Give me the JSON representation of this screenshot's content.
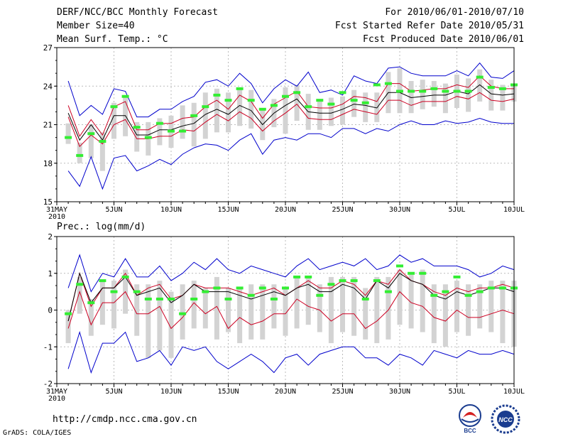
{
  "header": {
    "title": "DERF/NCC/BCC Monthly Forecast",
    "member_size": "Member Size=40",
    "variable": "Mean Surf. Temp.: °C",
    "period": "For 2010/06/01-2010/07/10",
    "refer_date": "Fcst Started Refer Date 2010/05/31",
    "produced_date": "Fcst Produced Date 2010/06/01"
  },
  "footer": {
    "url": "http://cmdp.ncc.cma.gov.cn",
    "credit": "GrADS: COLA/IGES",
    "logo_bcc": "BCC",
    "logo_ncc": "NCC"
  },
  "colors": {
    "ens_max_min": "#0000cc",
    "ens_spread": "#cc0022",
    "ens_mean": "#000000",
    "observed": "#33ee33",
    "box": "#d3d3d3"
  },
  "chart_data": [
    {
      "type": "line",
      "title": "Mean Surf. Temp.: °C",
      "ylim": [
        15,
        27
      ],
      "yticks": [
        "15",
        "18",
        "21",
        "24",
        "27"
      ],
      "ytick_values": [
        15,
        18,
        21,
        24,
        27
      ],
      "xlabels": [
        "31MAY",
        "5JUN",
        "10JUN",
        "15JUN",
        "20JUN",
        "25JUN",
        "30JUN",
        "5JUL",
        "10JUL"
      ],
      "xlabel_days": [
        0,
        5,
        10,
        15,
        20,
        25,
        30,
        35,
        40
      ],
      "year_label": "2010",
      "x": [
        1,
        2,
        3,
        4,
        5,
        6,
        7,
        8,
        9,
        10,
        11,
        12,
        13,
        14,
        15,
        16,
        17,
        18,
        19,
        20,
        21,
        22,
        23,
        24,
        25,
        26,
        27,
        28,
        29,
        30,
        31,
        32,
        33,
        34,
        35,
        36,
        37,
        38,
        39,
        40
      ],
      "series": [
        {
          "name": "max",
          "values": [
            24.4,
            21.7,
            22.5,
            21.8,
            23.8,
            23.6,
            21.6,
            21.6,
            22.2,
            22.2,
            22.8,
            23.2,
            24.3,
            24.5,
            24.0,
            25.0,
            24.2,
            22.7,
            23.8,
            24.5,
            24.0,
            25.1,
            23.5,
            23.7,
            23.3,
            24.8,
            24.4,
            24.2,
            25.4,
            25.5,
            25.0,
            24.8,
            24.8,
            24.8,
            25.2,
            24.8,
            25.8,
            24.7,
            24.6,
            25.2
          ]
        },
        {
          "name": "upper",
          "values": [
            22.5,
            20.1,
            21.4,
            20.2,
            22.4,
            22.8,
            20.6,
            20.6,
            21.1,
            21.1,
            21.5,
            21.6,
            22.4,
            22.9,
            22.2,
            23.3,
            22.8,
            21.5,
            22.6,
            23.1,
            23.6,
            22.4,
            22.3,
            22.3,
            22.6,
            23.2,
            23.1,
            22.8,
            24.2,
            24.2,
            23.6,
            23.7,
            23.8,
            23.8,
            24.1,
            23.9,
            24.8,
            24.0,
            23.8,
            23.8
          ]
        },
        {
          "name": "mean",
          "values": [
            21.9,
            19.8,
            21.0,
            19.8,
            21.7,
            21.7,
            20.2,
            20.2,
            20.6,
            20.6,
            20.9,
            21.1,
            21.8,
            22.2,
            21.8,
            22.5,
            22.1,
            21.0,
            21.9,
            22.5,
            23.0,
            22.0,
            21.9,
            21.9,
            22.2,
            22.6,
            22.5,
            22.3,
            23.5,
            23.5,
            23.1,
            23.2,
            23.3,
            23.3,
            23.6,
            23.4,
            24.1,
            23.4,
            23.3,
            23.4
          ]
        },
        {
          "name": "lower",
          "values": [
            21.6,
            19.3,
            20.2,
            19.5,
            21.0,
            21.4,
            19.9,
            19.9,
            20.1,
            20.1,
            20.6,
            20.5,
            21.2,
            21.8,
            21.3,
            22.0,
            21.5,
            20.5,
            21.3,
            21.9,
            22.6,
            21.5,
            21.4,
            21.4,
            21.8,
            22.2,
            22.0,
            21.8,
            22.9,
            22.9,
            22.5,
            22.8,
            22.8,
            22.8,
            23.2,
            23.0,
            23.5,
            22.9,
            22.8,
            23.0
          ]
        },
        {
          "name": "min",
          "values": [
            17.4,
            16.2,
            18.5,
            16.0,
            18.4,
            18.6,
            17.4,
            17.8,
            18.3,
            17.9,
            18.7,
            19.2,
            19.5,
            19.4,
            19.0,
            19.8,
            20.3,
            18.7,
            19.8,
            20.0,
            19.8,
            20.3,
            20.3,
            20.0,
            20.7,
            20.7,
            20.3,
            20.7,
            20.5,
            21.0,
            21.3,
            21.0,
            21.0,
            21.3,
            21.1,
            21.2,
            21.5,
            21.2,
            21.1,
            21.1
          ]
        },
        {
          "name": "observed",
          "values": [
            20.0,
            18.6,
            20.3,
            19.7,
            22.4,
            23.2,
            20.8,
            20.0,
            21.1,
            20.5,
            20.5,
            21.7,
            22.4,
            23.3,
            22.9,
            23.8,
            22.9,
            22.2,
            22.5,
            23.2,
            23.5,
            22.4,
            22.9,
            22.6,
            23.5,
            22.9,
            22.7,
            24.1,
            24.2,
            23.6,
            23.6,
            23.6,
            23.8,
            23.6,
            23.6,
            23.6,
            24.7,
            23.9,
            23.8,
            24.1
          ]
        },
        {
          "name": "box_top",
          "values": [
            21.1,
            19.6,
            21.0,
            20.4,
            22.7,
            23.3,
            21.2,
            21.2,
            21.5,
            21.7,
            22.5,
            22.7,
            23.5,
            23.8,
            23.5,
            23.9,
            23.7,
            22.3,
            23.0,
            23.9,
            24.1,
            23.4,
            22.9,
            23.1,
            23.2,
            23.7,
            23.5,
            23.5,
            25.1,
            25.4,
            24.4,
            24.5,
            24.4,
            24.2,
            24.9,
            24.6,
            25.3,
            24.5,
            24.1,
            24.2
          ]
        },
        {
          "name": "box_bottom",
          "values": [
            19.5,
            18.0,
            18.4,
            17.4,
            19.9,
            20.1,
            18.9,
            18.6,
            19.4,
            19.2,
            19.9,
            19.3,
            19.9,
            20.4,
            20.4,
            20.9,
            20.7,
            19.8,
            20.8,
            20.3,
            21.3,
            20.6,
            20.6,
            20.9,
            21.0,
            21.6,
            21.2,
            21.2,
            21.9,
            21.9,
            21.9,
            22.2,
            22.4,
            21.9,
            22.3,
            22.0,
            22.8,
            22.1,
            22.1,
            22.8
          ]
        }
      ]
    },
    {
      "type": "line",
      "title": "Prec.: log(mm/d)",
      "ylim": [
        -2,
        2
      ],
      "yticks": [
        "-2",
        "-1",
        "0",
        "1",
        "2"
      ],
      "ytick_values": [
        -2,
        -1,
        0,
        1,
        2
      ],
      "xlabels": [
        "31MAY",
        "5JUN",
        "10JUN",
        "15JUN",
        "20JUN",
        "25JUN",
        "30JUN",
        "5JUL",
        "10JUL"
      ],
      "xlabel_days": [
        0,
        5,
        10,
        15,
        20,
        25,
        30,
        35,
        40
      ],
      "year_label": "2010",
      "x": [
        1,
        2,
        3,
        4,
        5,
        6,
        7,
        8,
        9,
        10,
        11,
        12,
        13,
        14,
        15,
        16,
        17,
        18,
        19,
        20,
        21,
        22,
        23,
        24,
        25,
        26,
        27,
        28,
        29,
        30,
        31,
        32,
        33,
        34,
        35,
        36,
        37,
        38,
        39,
        40
      ],
      "series": [
        {
          "name": "max",
          "values": [
            0.6,
            1.5,
            0.5,
            1.0,
            0.9,
            1.4,
            0.9,
            0.9,
            1.2,
            0.8,
            1.0,
            1.3,
            1.1,
            1.4,
            1.1,
            1.0,
            1.2,
            1.1,
            1.0,
            0.9,
            1.2,
            1.4,
            1.1,
            1.2,
            1.3,
            1.2,
            1.4,
            1.1,
            1.2,
            1.5,
            1.3,
            1.4,
            1.2,
            1.2,
            1.2,
            1.1,
            0.9,
            1.0,
            1.2,
            1.1
          ]
        },
        {
          "name": "upper",
          "values": [
            -0.3,
            1.0,
            0.1,
            0.6,
            0.6,
            1.0,
            0.4,
            0.6,
            0.7,
            0.3,
            0.4,
            0.7,
            0.6,
            0.6,
            0.6,
            0.5,
            0.4,
            0.5,
            0.6,
            0.4,
            0.6,
            0.8,
            0.6,
            0.6,
            0.8,
            0.7,
            0.4,
            0.8,
            0.7,
            1.1,
            0.8,
            0.7,
            0.5,
            0.4,
            0.6,
            0.5,
            0.6,
            0.6,
            0.7,
            0.6
          ]
        },
        {
          "name": "mean",
          "values": [
            -0.3,
            1.0,
            0.2,
            0.6,
            0.6,
            0.9,
            0.4,
            0.5,
            0.6,
            0.2,
            0.4,
            0.7,
            0.5,
            0.5,
            0.5,
            0.4,
            0.3,
            0.4,
            0.5,
            0.4,
            0.6,
            0.7,
            0.5,
            0.5,
            0.7,
            0.6,
            0.3,
            0.8,
            0.6,
            1.0,
            0.8,
            0.7,
            0.4,
            0.3,
            0.5,
            0.4,
            0.5,
            0.6,
            0.6,
            0.5
          ]
        },
        {
          "name": "lower",
          "values": [
            -0.5,
            0.5,
            -0.4,
            0.2,
            0.2,
            0.5,
            -0.1,
            -0.1,
            0.1,
            -0.5,
            -0.2,
            0.2,
            -0.1,
            0.1,
            -0.5,
            -0.2,
            -0.4,
            -0.3,
            -0.1,
            -0.1,
            0.3,
            0.1,
            0.0,
            -0.3,
            -0.1,
            -0.1,
            -0.5,
            -0.3,
            0.0,
            0.5,
            0.2,
            0.1,
            -0.2,
            -0.3,
            0.0,
            -0.2,
            -0.2,
            -0.1,
            0.0,
            -0.1
          ]
        },
        {
          "name": "min",
          "values": [
            -1.6,
            -0.6,
            -1.7,
            -0.9,
            -0.9,
            -0.6,
            -1.4,
            -1.3,
            -1.1,
            -1.5,
            -1.0,
            -1.1,
            -1.0,
            -1.4,
            -1.6,
            -1.4,
            -1.2,
            -1.4,
            -1.7,
            -1.3,
            -1.2,
            -1.5,
            -1.2,
            -1.1,
            -1.0,
            -1.0,
            -1.3,
            -1.3,
            -1.5,
            -1.2,
            -1.3,
            -1.5,
            -1.1,
            -1.2,
            -1.3,
            -1.1,
            -1.2,
            -1.2,
            -1.1,
            -1.2
          ]
        },
        {
          "name": "observed",
          "values": [
            -0.1,
            0.7,
            0.2,
            0.8,
            0.5,
            0.9,
            0.5,
            0.3,
            0.3,
            0.3,
            -0.1,
            0.3,
            0.5,
            0.6,
            0.3,
            0.6,
            0.4,
            0.6,
            0.3,
            0.6,
            0.9,
            0.9,
            0.4,
            0.7,
            0.8,
            0.8,
            0.3,
            0.8,
            0.5,
            1.2,
            1.0,
            1.0,
            0.4,
            0.5,
            0.9,
            0.4,
            0.5,
            0.6,
            0.6,
            0.6
          ]
        },
        {
          "name": "box_top",
          "values": [
            0.0,
            0.9,
            0.3,
            0.8,
            0.8,
            1.1,
            0.7,
            0.7,
            0.8,
            0.5,
            0.7,
            0.8,
            0.6,
            0.9,
            0.6,
            0.6,
            0.7,
            0.7,
            0.7,
            0.6,
            0.9,
            0.9,
            0.7,
            0.9,
            0.9,
            0.9,
            0.6,
            0.9,
            0.9,
            1.1,
            1.0,
            1.1,
            0.7,
            0.7,
            0.8,
            0.7,
            0.7,
            0.8,
            0.8,
            0.8
          ]
        },
        {
          "name": "box_bottom",
          "values": [
            -0.9,
            -0.1,
            -0.7,
            -0.4,
            -0.5,
            -0.1,
            -0.7,
            -1.3,
            -1.1,
            -1.3,
            -0.8,
            -0.5,
            -0.5,
            -0.8,
            -0.6,
            -0.9,
            -0.8,
            -0.8,
            -0.5,
            -0.7,
            -0.5,
            -0.4,
            -0.6,
            -0.9,
            -0.6,
            -0.7,
            -0.8,
            -0.9,
            -0.8,
            -0.4,
            -0.5,
            -0.6,
            -0.9,
            -1.0,
            -0.6,
            -0.7,
            -0.5,
            -0.6,
            -0.9,
            -1.0
          ]
        }
      ]
    }
  ]
}
